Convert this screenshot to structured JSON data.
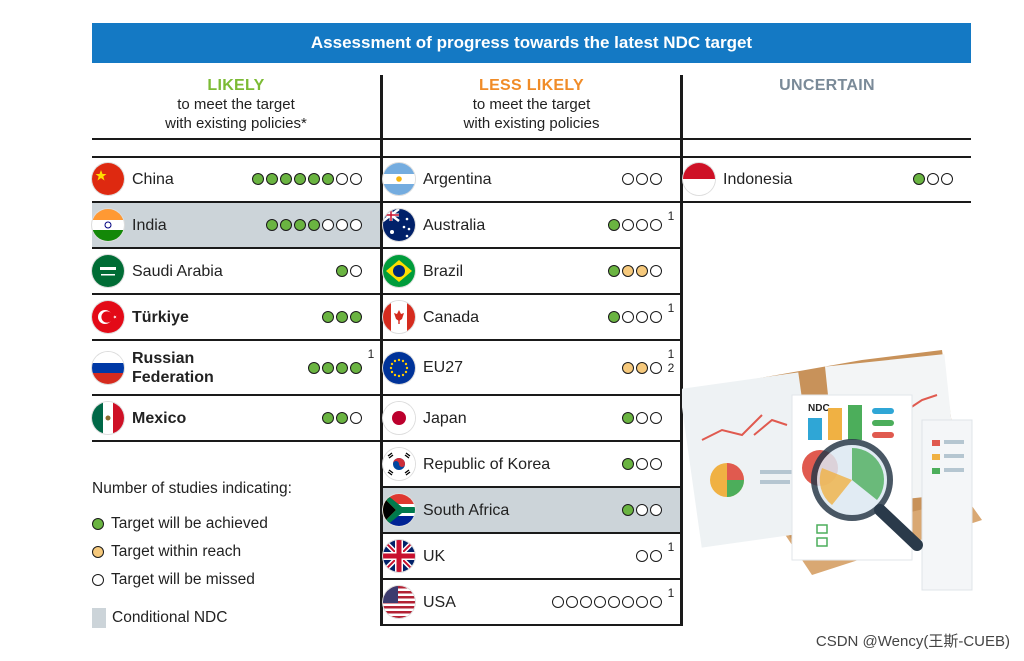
{
  "title": "Assessment of progress towards the latest NDC target",
  "columns": {
    "likely": {
      "label": "LIKELY",
      "sub1": "to meet the target",
      "sub2": "with existing policies*",
      "color": "#7cbb35"
    },
    "less_likely": {
      "label": "LESS LIKELY",
      "sub1": "to meet the target",
      "sub2": "with existing policies",
      "color": "#f08c28"
    },
    "uncertain": {
      "label": "UNCERTAIN",
      "color": "#7a8a98"
    }
  },
  "chart_data": {
    "type": "table",
    "dot_colors": {
      "achieved": "#6ab441",
      "within_reach": "#f6c97c",
      "missed": "#ffffff"
    },
    "likely": [
      {
        "country": "China",
        "dots": [
          "g",
          "g",
          "g",
          "g",
          "g",
          "g",
          "o",
          "o"
        ],
        "conditional": false,
        "bold": false,
        "note": ""
      },
      {
        "country": "India",
        "dots": [
          "g",
          "g",
          "g",
          "g",
          "o",
          "o",
          "o"
        ],
        "conditional": true,
        "bold": false,
        "note": ""
      },
      {
        "country": "Saudi Arabia",
        "dots": [
          "g",
          "o"
        ],
        "conditional": false,
        "bold": false,
        "note": ""
      },
      {
        "country": "Türkiye",
        "dots": [
          "g",
          "g",
          "g"
        ],
        "conditional": false,
        "bold": true,
        "note": ""
      },
      {
        "country": "Russian Federation",
        "dots": [
          "g",
          "g",
          "g",
          "g"
        ],
        "conditional": false,
        "bold": true,
        "note": "1"
      },
      {
        "country": "Mexico",
        "dots": [
          "g",
          "g",
          "o"
        ],
        "conditional": false,
        "bold": true,
        "note": ""
      }
    ],
    "less_likely": [
      {
        "country": "Argentina",
        "dots": [
          "o",
          "o",
          "o"
        ],
        "conditional": false,
        "note": ""
      },
      {
        "country": "Australia",
        "dots": [
          "g",
          "o",
          "o",
          "o"
        ],
        "conditional": false,
        "note": "1"
      },
      {
        "country": "Brazil",
        "dots": [
          "g",
          "y",
          "y",
          "o"
        ],
        "conditional": false,
        "note": ""
      },
      {
        "country": "Canada",
        "dots": [
          "g",
          "o",
          "o",
          "o"
        ],
        "conditional": false,
        "note": "1"
      },
      {
        "country": "EU27",
        "dots": [
          "y",
          "y",
          "o"
        ],
        "conditional": false,
        "note": "1\n2"
      },
      {
        "country": "Japan",
        "dots": [
          "g",
          "o",
          "o"
        ],
        "conditional": false,
        "note": ""
      },
      {
        "country": "Republic of Korea",
        "dots": [
          "g",
          "o",
          "o"
        ],
        "conditional": false,
        "note": ""
      },
      {
        "country": "South Africa",
        "dots": [
          "g",
          "o",
          "o"
        ],
        "conditional": true,
        "note": ""
      },
      {
        "country": "UK",
        "dots": [
          "o",
          "o"
        ],
        "conditional": false,
        "note": "1"
      },
      {
        "country": "USA",
        "dots": [
          "o",
          "o",
          "o",
          "o",
          "o",
          "o",
          "o",
          "o"
        ],
        "conditional": false,
        "note": "1"
      }
    ],
    "uncertain": [
      {
        "country": "Indonesia",
        "dots": [
          "g",
          "o",
          "o"
        ],
        "conditional": false,
        "note": ""
      }
    ]
  },
  "legend": {
    "title": "Number of studies indicating:",
    "achieved": "Target will be achieved",
    "within_reach": "Target within reach",
    "missed": "Target will be missed",
    "conditional": "Conditional NDC"
  },
  "illustration": {
    "label": "NDC"
  },
  "watermark": "CSDN @Wency(王斯-CUEB)"
}
